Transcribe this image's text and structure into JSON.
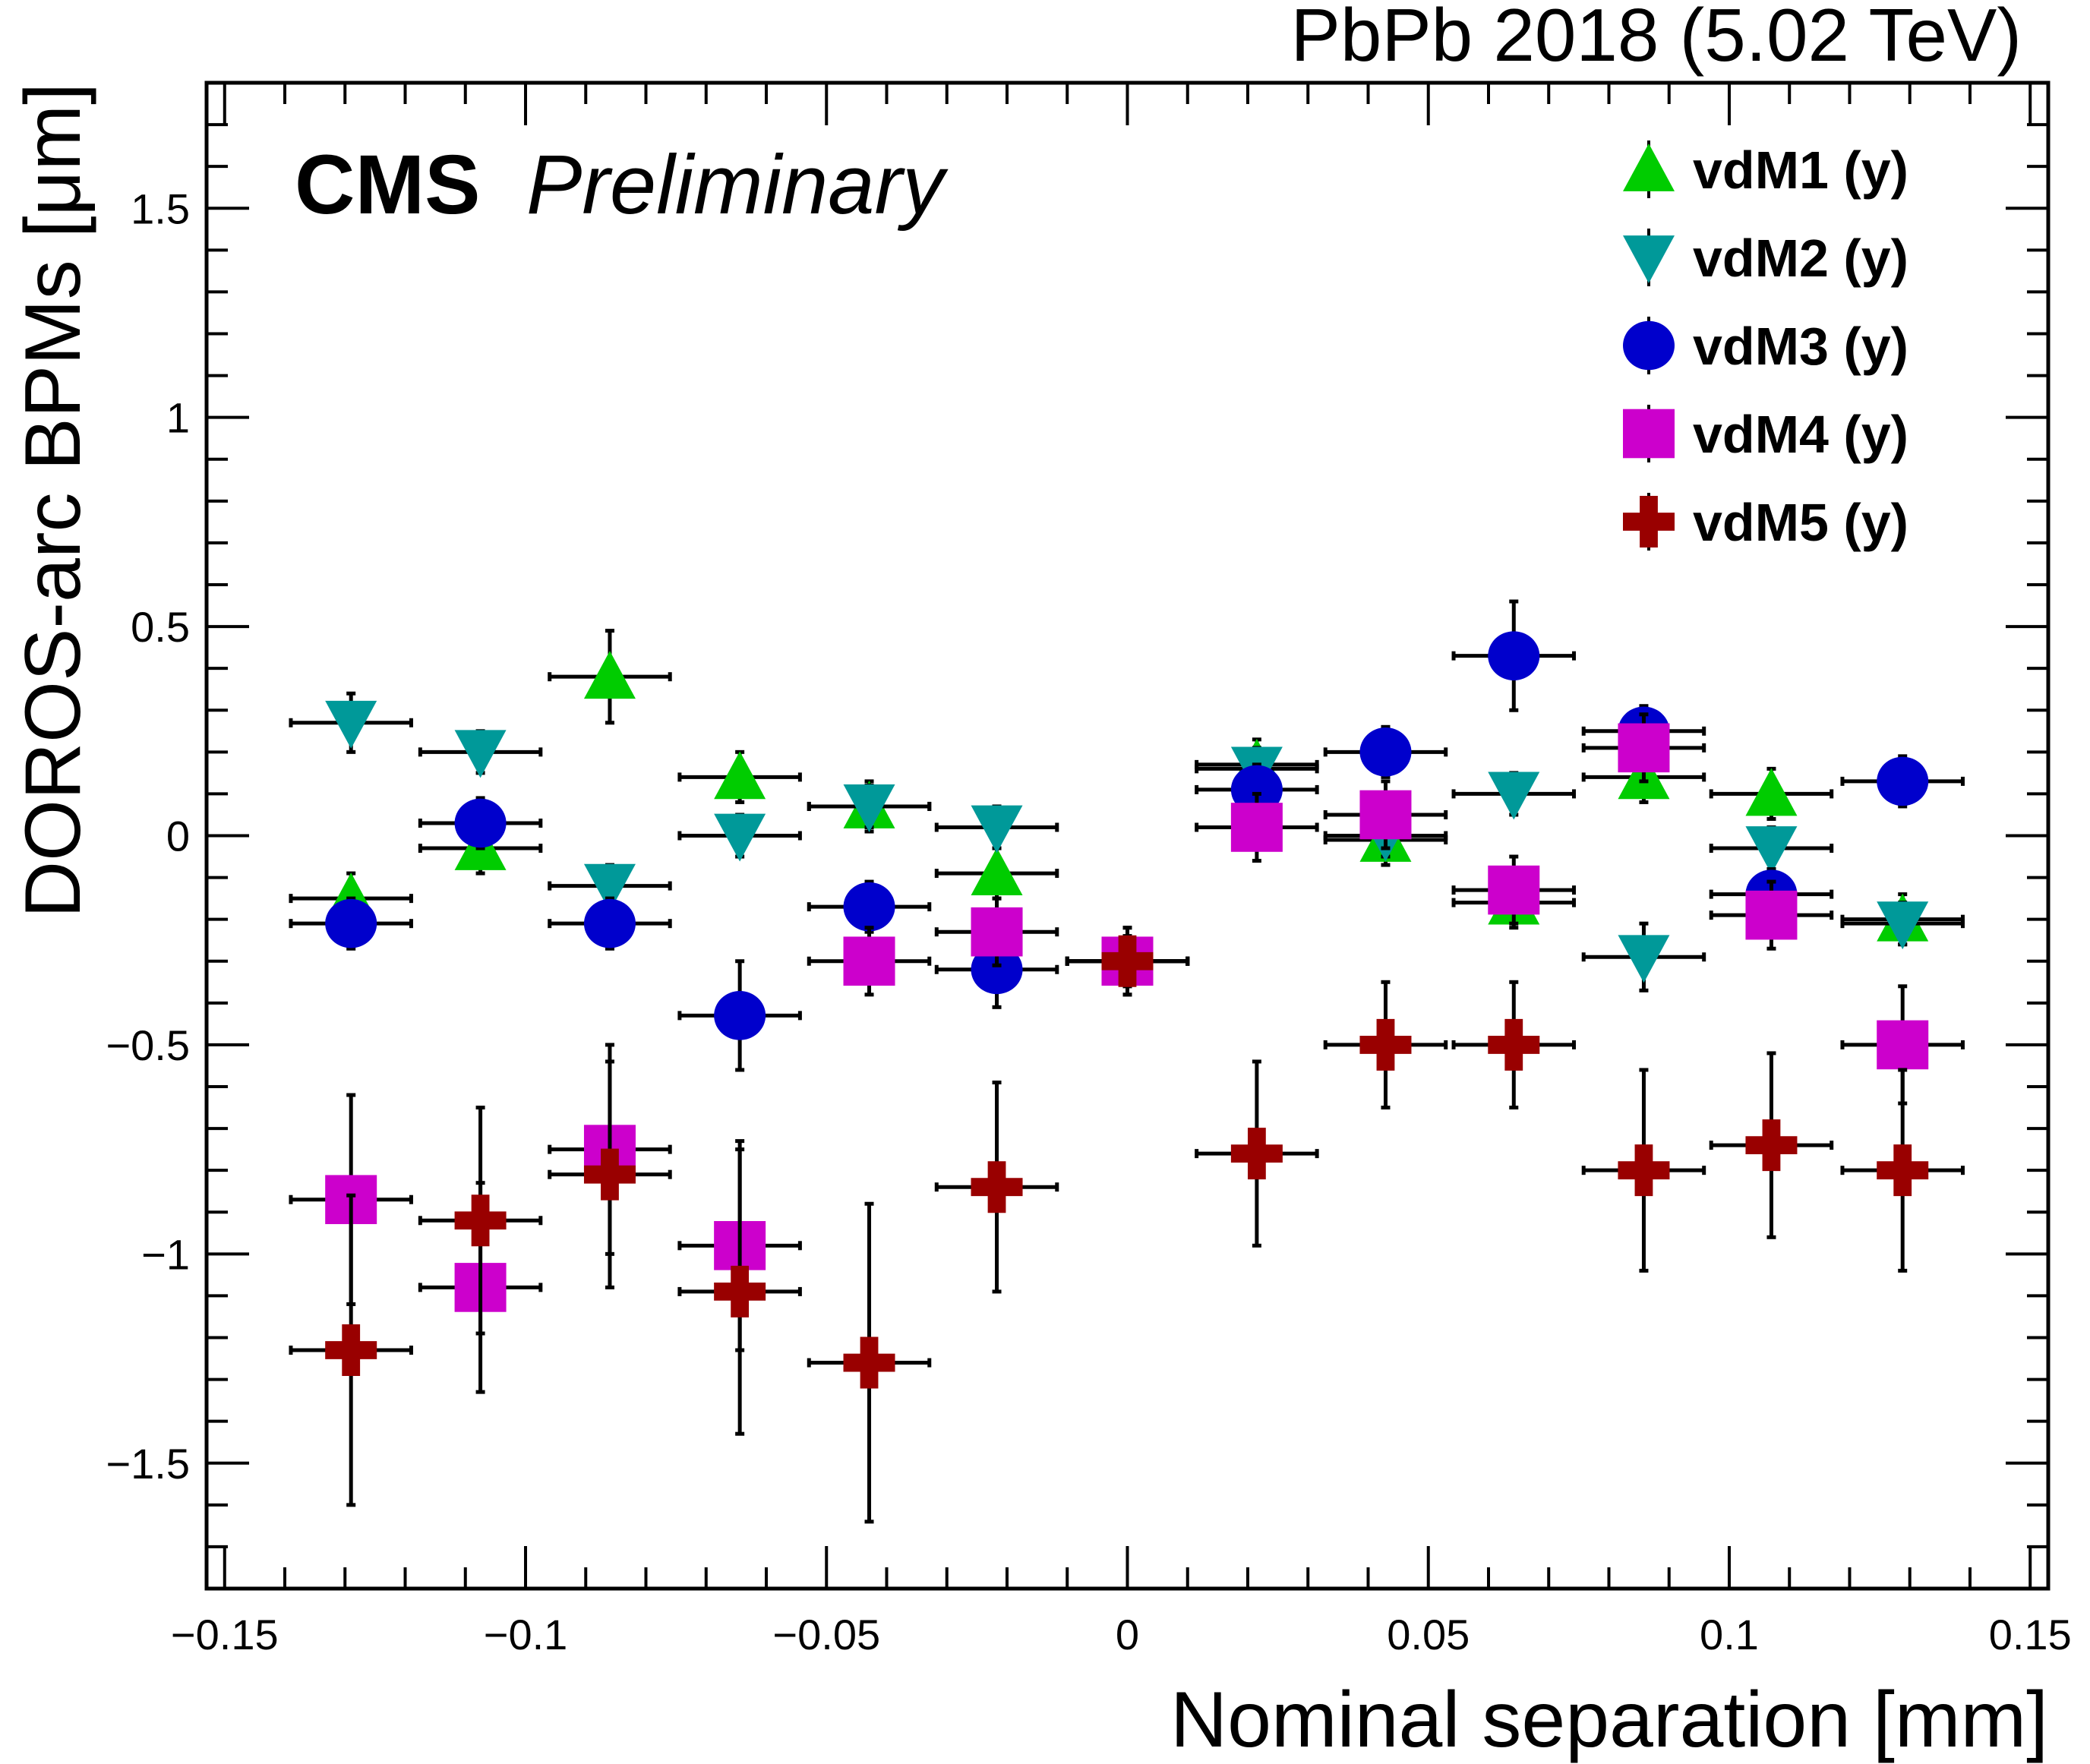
{
  "chart_data": {
    "type": "scatter",
    "title": "PbPb 2018 (5.02 TeV)",
    "experiment_label": "CMS",
    "status_label": "Preliminary",
    "xlabel": "Nominal separation [mm]",
    "ylabel": "DOROS-arc BPMs [μm]",
    "xlim": [
      -0.153,
      0.153
    ],
    "ylim": [
      -1.8,
      1.8
    ],
    "x_ticks": [
      -0.15,
      -0.1,
      -0.05,
      0,
      0.05,
      0.1,
      0.15
    ],
    "x_tick_labels": [
      "−0.15",
      "−0.1",
      "−0.05",
      "0",
      "0.05",
      "0.1",
      "0.15"
    ],
    "y_ticks": [
      -1.5,
      -1,
      -0.5,
      0,
      0.5,
      1,
      1.5
    ],
    "y_tick_labels": [
      "−1.5",
      "−1",
      "−0.5",
      "0",
      "0.5",
      "1",
      "1.5"
    ],
    "legend_position": "top-right",
    "grid": false,
    "x": [
      -0.129,
      -0.1075,
      -0.086,
      -0.0644,
      -0.0429,
      -0.0217,
      0,
      0.0215,
      0.0429,
      0.0642,
      0.0858,
      0.107,
      0.1288
    ],
    "x_error": 0.01,
    "series": [
      {
        "name": "vdM1 (y)",
        "marker": "triangle-up",
        "color": "#00cc00",
        "values": [
          -0.15,
          -0.03,
          0.38,
          0.14,
          0.07,
          -0.09,
          -0.3,
          0.17,
          -0.01,
          -0.16,
          0.14,
          0.1,
          -0.2
        ],
        "y_error": [
          0.06,
          0.06,
          0.11,
          0.06,
          0.06,
          0.06,
          0.06,
          0.06,
          0.06,
          0.06,
          0.06,
          0.06,
          0.06
        ]
      },
      {
        "name": "vdM2 (y)",
        "marker": "triangle-down",
        "color": "#009999",
        "values": [
          0.27,
          0.2,
          -0.12,
          0.0,
          0.07,
          0.02,
          -0.3,
          0.16,
          0.0,
          0.1,
          -0.29,
          -0.03,
          -0.21
        ],
        "y_error": [
          0.07,
          0.05,
          0.05,
          0.05,
          0.05,
          0.05,
          0.05,
          0.05,
          0.05,
          0.05,
          0.08,
          0.05,
          0.05
        ]
      },
      {
        "name": "vdM3 (y)",
        "marker": "circle",
        "color": "#0000cc",
        "values": [
          -0.21,
          0.03,
          -0.21,
          -0.43,
          -0.17,
          -0.32,
          -0.3,
          0.11,
          0.2,
          0.43,
          0.25,
          -0.14,
          0.13
        ],
        "y_error": [
          0.06,
          0.06,
          0.06,
          0.13,
          0.06,
          0.09,
          0.06,
          0.06,
          0.06,
          0.13,
          0.06,
          0.06,
          0.06
        ]
      },
      {
        "name": "vdM4 (y)",
        "marker": "square",
        "color": "#cc00cc",
        "values": [
          -0.87,
          -1.08,
          -0.75,
          -0.98,
          -0.3,
          -0.23,
          -0.3,
          0.02,
          0.05,
          -0.13,
          0.21,
          -0.19,
          -0.5
        ],
        "y_error": [
          0.25,
          0.25,
          0.25,
          0.25,
          0.08,
          0.08,
          0.08,
          0.08,
          0.08,
          0.08,
          0.08,
          0.08,
          0.14
        ]
      },
      {
        "name": "vdM5 (y)",
        "marker": "cross",
        "color": "#990000",
        "values": [
          -1.23,
          -0.92,
          -0.81,
          -1.09,
          -1.26,
          -0.84,
          -0.3,
          -0.76,
          -0.5,
          -0.5,
          -0.8,
          -0.74,
          -0.8
        ],
        "y_error": [
          0.37,
          0.27,
          0.27,
          0.34,
          0.38,
          0.25,
          0.08,
          0.22,
          0.15,
          0.15,
          0.24,
          0.22,
          0.24
        ]
      }
    ]
  }
}
